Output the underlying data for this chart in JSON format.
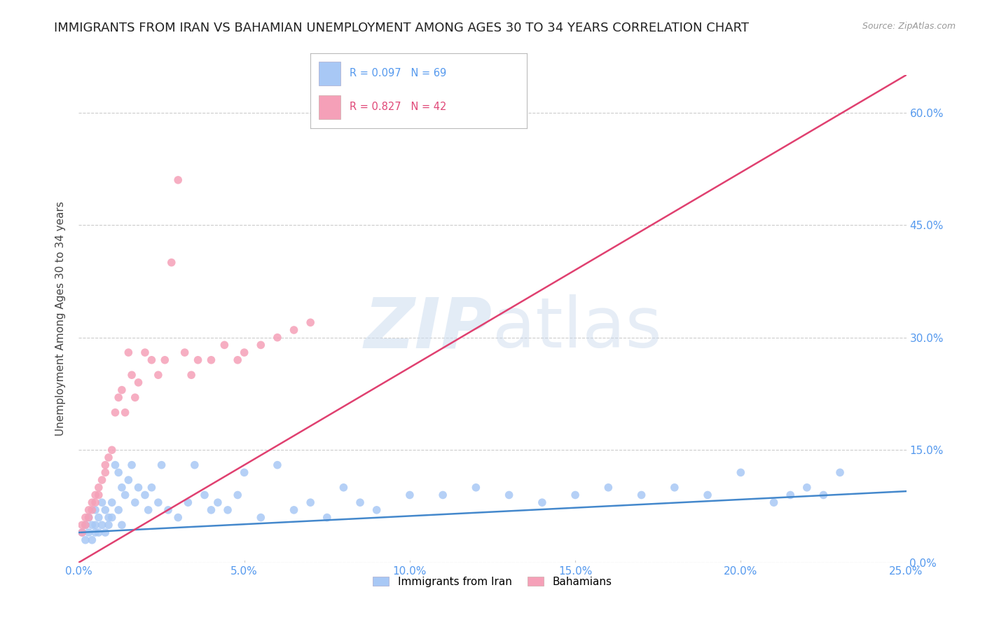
{
  "title": "IMMIGRANTS FROM IRAN VS BAHAMIAN UNEMPLOYMENT AMONG AGES 30 TO 34 YEARS CORRELATION CHART",
  "source": "Source: ZipAtlas.com",
  "ylabel": "Unemployment Among Ages 30 to 34 years",
  "legend_label1": "Immigrants from Iran",
  "legend_label2": "Bahamians",
  "R1": 0.097,
  "N1": 69,
  "R2": 0.827,
  "N2": 42,
  "color1": "#a8c8f5",
  "color2": "#f5a0b8",
  "line_color1": "#4488cc",
  "line_color2": "#e04070",
  "xlim": [
    0.0,
    0.25
  ],
  "ylim": [
    0.0,
    0.65
  ],
  "yticks": [
    0.0,
    0.15,
    0.3,
    0.45,
    0.6
  ],
  "xticks": [
    0.0,
    0.05,
    0.1,
    0.15,
    0.2,
    0.25
  ],
  "watermark_zip": "ZIP",
  "watermark_atlas": "atlas",
  "background_color": "#ffffff",
  "title_fontsize": 13,
  "tick_label_color": "#5599ee",
  "grid_color": "#cccccc",
  "blue_x": [
    0.001,
    0.002,
    0.002,
    0.003,
    0.003,
    0.004,
    0.004,
    0.005,
    0.005,
    0.005,
    0.006,
    0.006,
    0.007,
    0.007,
    0.008,
    0.008,
    0.009,
    0.009,
    0.01,
    0.01,
    0.011,
    0.012,
    0.012,
    0.013,
    0.013,
    0.014,
    0.015,
    0.016,
    0.017,
    0.018,
    0.02,
    0.021,
    0.022,
    0.024,
    0.025,
    0.027,
    0.03,
    0.033,
    0.035,
    0.038,
    0.04,
    0.042,
    0.045,
    0.048,
    0.05,
    0.055,
    0.06,
    0.065,
    0.07,
    0.075,
    0.08,
    0.085,
    0.09,
    0.1,
    0.11,
    0.12,
    0.13,
    0.14,
    0.15,
    0.16,
    0.17,
    0.18,
    0.19,
    0.2,
    0.21,
    0.215,
    0.22,
    0.225,
    0.23
  ],
  "blue_y": [
    0.04,
    0.05,
    0.03,
    0.06,
    0.04,
    0.05,
    0.03,
    0.07,
    0.05,
    0.04,
    0.06,
    0.04,
    0.08,
    0.05,
    0.07,
    0.04,
    0.06,
    0.05,
    0.08,
    0.06,
    0.13,
    0.12,
    0.07,
    0.1,
    0.05,
    0.09,
    0.11,
    0.13,
    0.08,
    0.1,
    0.09,
    0.07,
    0.1,
    0.08,
    0.13,
    0.07,
    0.06,
    0.08,
    0.13,
    0.09,
    0.07,
    0.08,
    0.07,
    0.09,
    0.12,
    0.06,
    0.13,
    0.07,
    0.08,
    0.06,
    0.1,
    0.08,
    0.07,
    0.09,
    0.09,
    0.1,
    0.09,
    0.08,
    0.09,
    0.1,
    0.09,
    0.1,
    0.09,
    0.12,
    0.08,
    0.09,
    0.1,
    0.09,
    0.12
  ],
  "pink_x": [
    0.001,
    0.001,
    0.002,
    0.002,
    0.003,
    0.003,
    0.004,
    0.004,
    0.005,
    0.005,
    0.006,
    0.006,
    0.007,
    0.008,
    0.008,
    0.009,
    0.01,
    0.011,
    0.012,
    0.013,
    0.014,
    0.015,
    0.016,
    0.017,
    0.018,
    0.02,
    0.022,
    0.024,
    0.026,
    0.028,
    0.03,
    0.032,
    0.034,
    0.036,
    0.04,
    0.044,
    0.048,
    0.05,
    0.055,
    0.06,
    0.065,
    0.07
  ],
  "pink_y": [
    0.05,
    0.04,
    0.06,
    0.05,
    0.07,
    0.06,
    0.08,
    0.07,
    0.09,
    0.08,
    0.1,
    0.09,
    0.11,
    0.13,
    0.12,
    0.14,
    0.15,
    0.2,
    0.22,
    0.23,
    0.2,
    0.28,
    0.25,
    0.22,
    0.24,
    0.28,
    0.27,
    0.25,
    0.27,
    0.4,
    0.51,
    0.28,
    0.25,
    0.27,
    0.27,
    0.29,
    0.27,
    0.28,
    0.29,
    0.3,
    0.31,
    0.32
  ],
  "blue_line_x": [
    0.0,
    0.25
  ],
  "blue_line_y": [
    0.04,
    0.095
  ],
  "pink_line_x": [
    0.0,
    0.25
  ],
  "pink_line_y": [
    0.0,
    0.65
  ]
}
